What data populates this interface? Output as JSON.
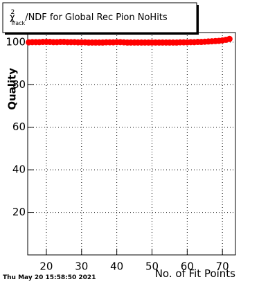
{
  "chart_data": {
    "type": "scatter",
    "title_parts": [
      "χ",
      "2",
      "Track",
      "/NDF for Global Rec Pion NoHits"
    ],
    "x_label": "No. of Fit Points",
    "y_label": "Quality",
    "footer": "Thu May 20 15:58:50 2021",
    "x": [
      15,
      16,
      17,
      18,
      19,
      20,
      21,
      22,
      23,
      24,
      25,
      26,
      27,
      28,
      29,
      30,
      31,
      32,
      33,
      34,
      35,
      36,
      37,
      38,
      39,
      40,
      41,
      42,
      43,
      44,
      45,
      46,
      47,
      48,
      49,
      50,
      51,
      52,
      53,
      54,
      55,
      56,
      57,
      58,
      59,
      60,
      61,
      62,
      63,
      64,
      65,
      66,
      67,
      68,
      69,
      70,
      71,
      72
    ],
    "values": [
      99.9,
      100,
      100,
      100,
      100.1,
      100.1,
      100.1,
      100,
      100,
      100.1,
      100.1,
      100,
      100,
      100,
      99.9,
      99.9,
      99.9,
      99.8,
      99.8,
      99.8,
      99.8,
      99.8,
      99.9,
      99.9,
      99.9,
      100,
      100,
      99.9,
      99.8,
      99.8,
      99.8,
      99.8,
      99.8,
      99.8,
      99.8,
      99.8,
      99.8,
      99.8,
      99.8,
      99.8,
      99.8,
      99.8,
      99.8,
      99.9,
      99.9,
      99.9,
      100,
      100,
      100.1,
      100.1,
      100.2,
      100.3,
      100.4,
      100.5,
      100.6,
      100.8,
      101.1,
      101.5
    ],
    "color": "#ff0000",
    "xlim": [
      14.7,
      73.7
    ],
    "xticks": [
      20,
      30,
      40,
      50,
      60,
      70
    ],
    "ylim": [
      0,
      104.5
    ],
    "yticks": [
      20,
      40,
      60,
      80,
      100
    ],
    "grid": true
  }
}
